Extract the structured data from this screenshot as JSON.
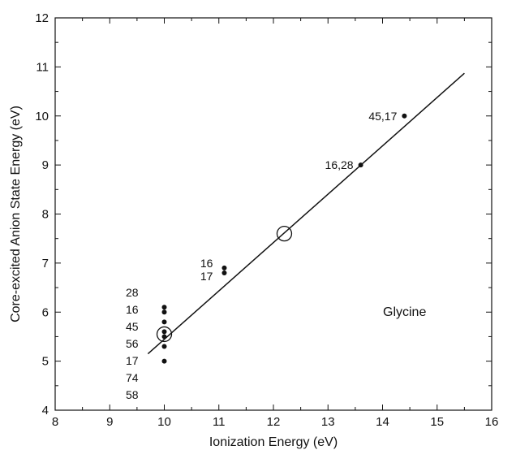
{
  "chart_data": {
    "type": "scatter",
    "title": "",
    "xlabel": "Ionization Energy (eV)",
    "ylabel": "Core-excited Anion State Energy (eV)",
    "xlim": [
      8,
      16
    ],
    "ylim": [
      4,
      12
    ],
    "xticks": [
      "8",
      "9",
      "10",
      "11",
      "12",
      "13",
      "14",
      "15",
      "16"
    ],
    "yticks": [
      "4",
      "5",
      "6",
      "7",
      "8",
      "9",
      "10",
      "11",
      "12"
    ],
    "grid": false,
    "annotation_text": "Glycine",
    "points": [
      {
        "x": 10.0,
        "y": 6.1
      },
      {
        "x": 10.0,
        "y": 6.0
      },
      {
        "x": 10.0,
        "y": 5.8
      },
      {
        "x": 10.0,
        "y": 5.6
      },
      {
        "x": 10.0,
        "y": 5.5
      },
      {
        "x": 10.0,
        "y": 5.3
      },
      {
        "x": 10.0,
        "y": 5.0
      },
      {
        "x": 11.1,
        "y": 6.9
      },
      {
        "x": 11.1,
        "y": 6.8
      },
      {
        "x": 13.6,
        "y": 9.0
      },
      {
        "x": 14.4,
        "y": 10.0
      }
    ],
    "open_circles": [
      {
        "x": 10.0,
        "y": 5.55
      },
      {
        "x": 12.2,
        "y": 7.6
      }
    ],
    "fit_line": {
      "x": [
        9.7,
        15.5
      ],
      "y": [
        5.15,
        10.87
      ]
    },
    "point_labels": [
      {
        "text": "45,17",
        "x": 14.4,
        "y": 10.0
      },
      {
        "text": "16,28",
        "x": 13.6,
        "y": 9.0
      },
      {
        "text": "16",
        "x": 11.1,
        "y": 6.9
      },
      {
        "text": "17",
        "x": 11.1,
        "y": 6.8
      }
    ],
    "stacked_labels": [
      "28",
      "16",
      "45",
      "56",
      "17",
      "74",
      "58"
    ]
  }
}
